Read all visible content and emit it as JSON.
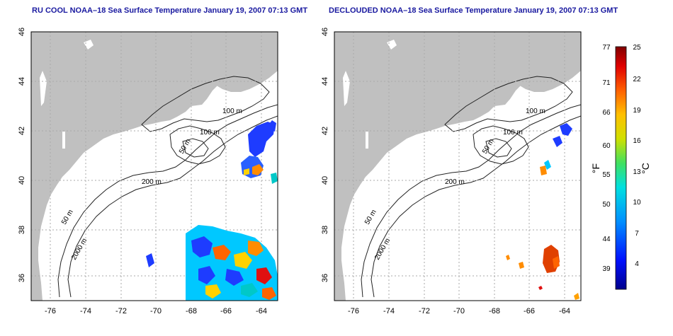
{
  "panels": [
    {
      "id": "left",
      "title": "RU COOL NOAA–18 Sea Surface Temperature January 19, 2007 07:13 GMT",
      "contour_labels": [
        "100 m",
        "100 m",
        "50 m",
        "200 m",
        "50 m",
        "2000 m"
      ]
    },
    {
      "id": "right",
      "title": "DECLOUDED NOAA–18 Sea Surface Temperature January 19, 2007 07:13 GMT",
      "contour_labels": [
        "100 m",
        "100 m",
        "50 m",
        "200 m",
        "50 m",
        "2000 m"
      ]
    }
  ],
  "axes": {
    "x_ticks": [
      "-76",
      "-74",
      "-72",
      "-70",
      "-68",
      "-66",
      "-64"
    ],
    "x_values": [
      -76,
      -74,
      -72,
      -70,
      -68,
      -66,
      -64
    ],
    "y_ticks": [
      "46",
      "44",
      "42",
      "40",
      "38",
      "36"
    ],
    "y_values": [
      46,
      44,
      42,
      40,
      38,
      36
    ],
    "lon_range": [
      -77,
      -63
    ],
    "lat_range": [
      35,
      46
    ],
    "grid": "dotted"
  },
  "colorbar": {
    "fahrenheit_ticks": [
      "77",
      "71",
      "66",
      "60",
      "55",
      "50",
      "44",
      "39"
    ],
    "fahrenheit_values": [
      77,
      71,
      66,
      60,
      55,
      50,
      44,
      39
    ],
    "celsius_ticks": [
      "25",
      "22",
      "19",
      "16",
      "13",
      "10",
      "7",
      "4"
    ],
    "celsius_values": [
      25,
      22,
      19,
      16,
      13,
      10,
      7,
      4
    ],
    "range_c": [
      1,
      25
    ],
    "fahrenheit_unit": "°F",
    "celsius_unit": "°C"
  },
  "colors": {
    "land": "#c0c0c0",
    "ocean": "#ffffff",
    "title": "#1a1aa0",
    "contour": "#222222",
    "grid": "#aaaaaa"
  }
}
